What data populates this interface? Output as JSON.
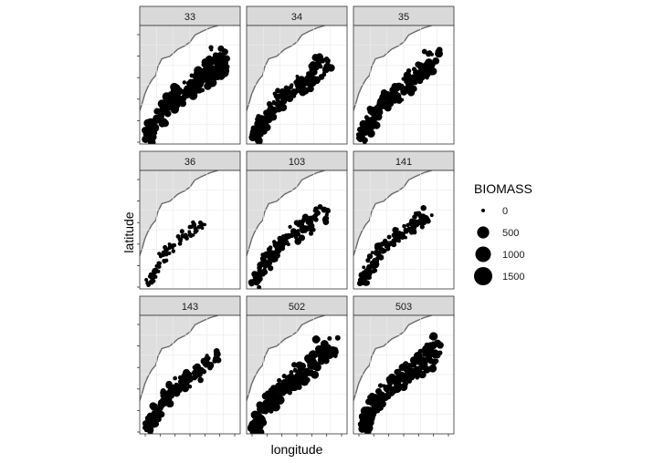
{
  "chart_data": {
    "type": "scatter",
    "subtype": "faceted map of point biomass",
    "facet_labels": [
      "33",
      "34",
      "35",
      "36",
      "103",
      "141",
      "143",
      "502",
      "503"
    ],
    "facet_layout": "3x3",
    "xlabel": "longitude",
    "ylabel": "latitude",
    "x_tick_labels": [],
    "y_tick_labels": [],
    "grid": true,
    "legend": {
      "title": "BIOMASS",
      "placement": "right",
      "entries": [
        {
          "label": "0",
          "value": 0
        },
        {
          "label": "500",
          "value": 500
        },
        {
          "label": "1000",
          "value": 1000
        },
        {
          "label": "1500",
          "value": 1500
        }
      ]
    },
    "colors": {
      "land": "#dedede",
      "coast": "#6b6b6b",
      "points": "#000000",
      "strip": "#d9d9d9",
      "grid": "#ebebeb",
      "panel_border": "#333333"
    },
    "facets": [
      {
        "label": "33",
        "relative_spread": 1.0
      },
      {
        "label": "34",
        "relative_spread": 0.8
      },
      {
        "label": "35",
        "relative_spread": 0.85
      },
      {
        "label": "36",
        "relative_spread": 0.25
      },
      {
        "label": "103",
        "relative_spread": 0.65
      },
      {
        "label": "141",
        "relative_spread": 0.55
      },
      {
        "label": "143",
        "relative_spread": 0.7
      },
      {
        "label": "502",
        "relative_spread": 1.0
      },
      {
        "label": "503",
        "relative_spread": 0.95
      }
    ]
  }
}
